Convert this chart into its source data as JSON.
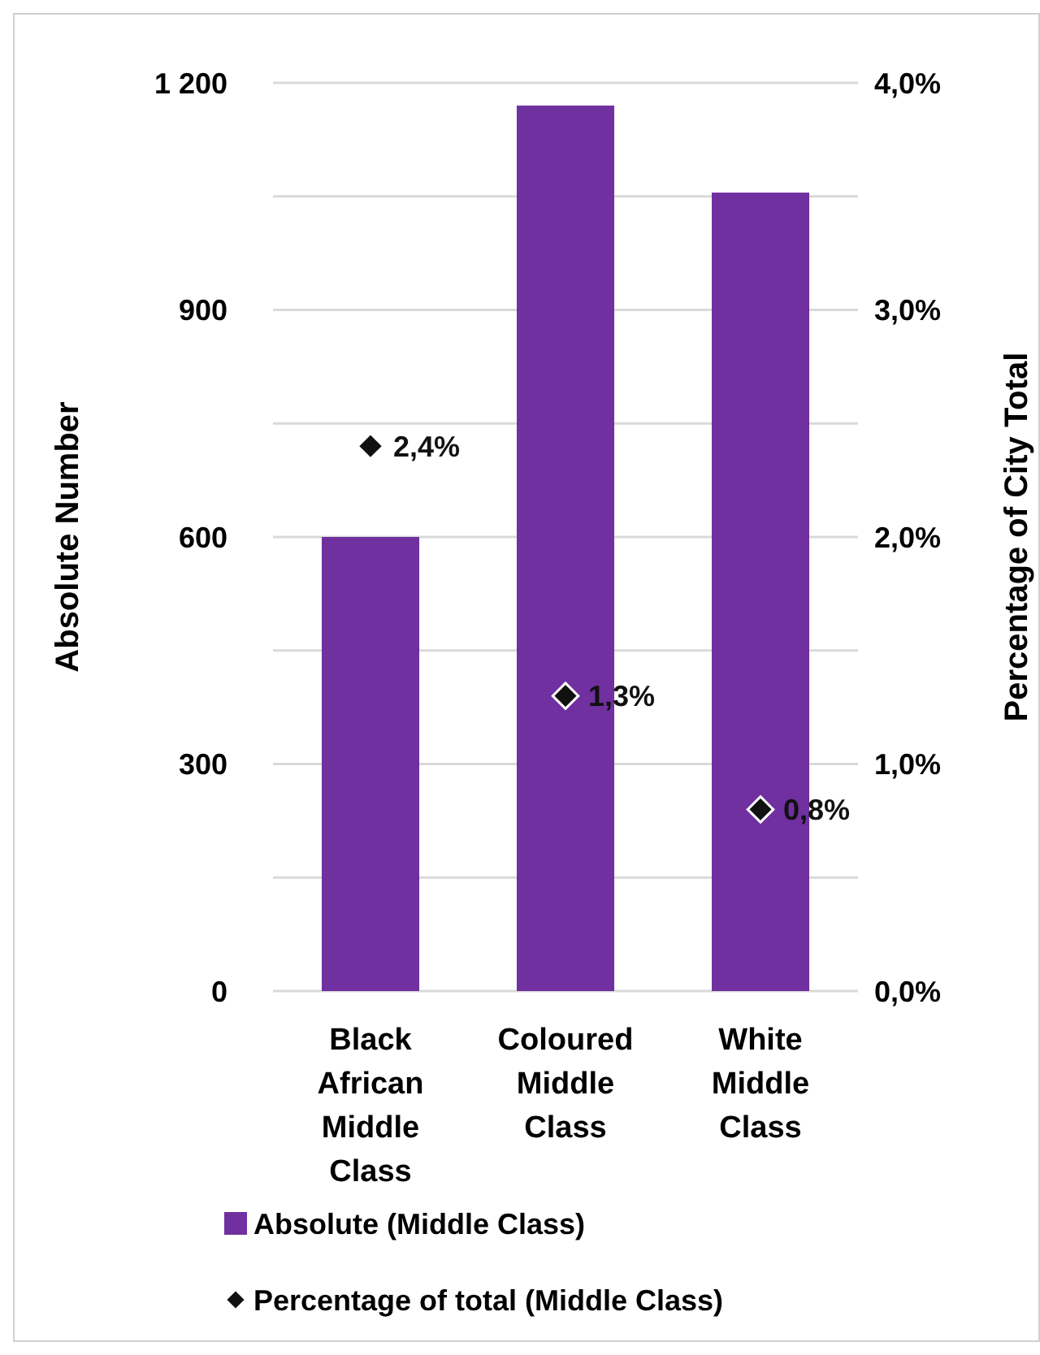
{
  "chart_data": {
    "type": "bar",
    "categories": [
      "Black African Middle Class",
      "Coloured Middle Class",
      "White Middle Class"
    ],
    "series": [
      {
        "name": "Absolute (Middle Class)",
        "color": "#7030a0",
        "values": [
          600,
          1170,
          1055
        ]
      },
      {
        "name": "Percentage of total (Middle Class)",
        "type": "scatter",
        "axis": "y2",
        "color": "#111111",
        "marker": "diamond",
        "values": [
          2.4,
          1.3,
          0.8
        ],
        "value_labels": [
          "2,4%",
          "1,3%",
          "0,8%"
        ]
      }
    ],
    "ylabel": "Absolute Number",
    "y2label": "Percentage of City Total",
    "ylim": [
      0,
      1200
    ],
    "yticks": [
      0,
      {
        "value": 150,
        "label": null
      },
      300,
      {
        "value": 450,
        "label": null
      },
      600,
      {
        "value": 750,
        "label": null
      },
      900,
      {
        "value": 1050,
        "label": null
      },
      {
        "value": 1200,
        "label": "1 200"
      }
    ],
    "y2lim": [
      0,
      4
    ],
    "y2ticks": [
      {
        "value": 0,
        "label": "0,0%"
      },
      {
        "value": 1,
        "label": "1,0%"
      },
      {
        "value": 2,
        "label": "2,0%"
      },
      {
        "value": 3,
        "label": "3,0%"
      },
      {
        "value": 4,
        "label": "4,0%"
      }
    ],
    "grid": "y",
    "legend": "bottom"
  }
}
